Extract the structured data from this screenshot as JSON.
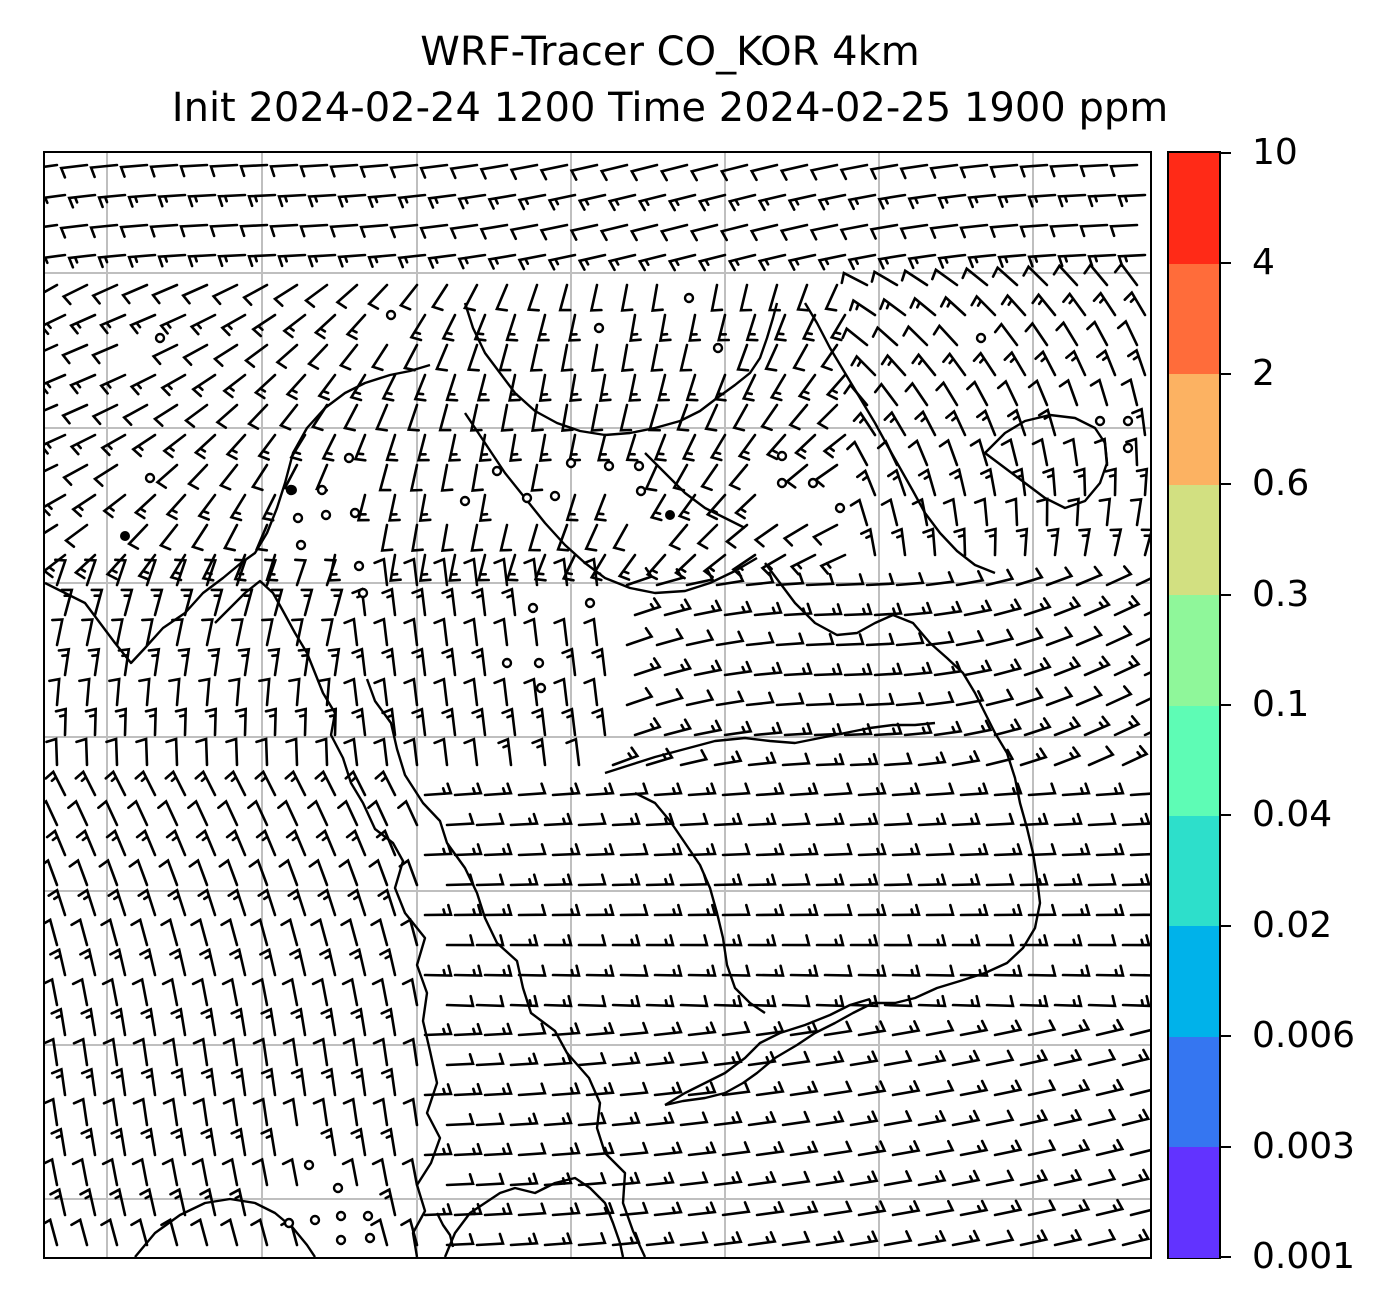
{
  "title": {
    "line1": "WRF-Tracer CO_KOR 4km",
    "line2": "Init 2024-02-24 1200 Time 2024-02-25 1900 ppm"
  },
  "colorbar": {
    "levels": [
      "0.001",
      "0.003",
      "0.006",
      "0.02",
      "0.04",
      "0.1",
      "0.3",
      "0.6",
      "2",
      "4",
      "10"
    ],
    "colors": [
      "#6233ff",
      "#3576f1",
      "#00b2ea",
      "#2ddfcb",
      "#5efcb5",
      "#8ff79a",
      "#d2e081",
      "#fcb262",
      "#ff6c3a",
      "#ff2a17"
    ]
  },
  "map": {
    "gridline_color": "#bfbfbf",
    "coastline_color": "#000000",
    "barb_color": "#000000",
    "calm_marker": "open-circle"
  }
}
